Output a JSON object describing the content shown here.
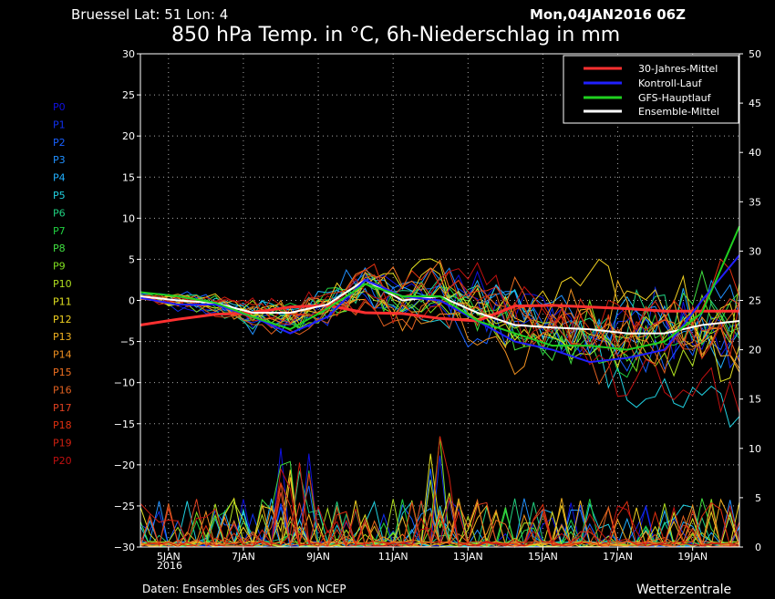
{
  "header": {
    "location": "Bruessel   Lat: 51 Lon: 4",
    "run": "Mon,04JAN2016 06Z",
    "title": "850 hPa Temp. in °C, 6h-Niederschlag in mm"
  },
  "footer": {
    "source": "Daten: Ensembles des GFS von NCEP",
    "brand": "Wetterzentrale"
  },
  "legend": [
    {
      "label": "30-Jahres-Mittel",
      "color": "#ff3030"
    },
    {
      "label": "Kontroll-Lauf",
      "color": "#2020ff"
    },
    {
      "label": "GFS-Hauptlauf",
      "color": "#20d020"
    },
    {
      "label": "Ensemble-Mittel",
      "color": "#ffffff"
    }
  ],
  "members": [
    {
      "label": "P0",
      "color": "#1010e0"
    },
    {
      "label": "P1",
      "color": "#1030f0"
    },
    {
      "label": "P2",
      "color": "#1860ff"
    },
    {
      "label": "P3",
      "color": "#2090ff"
    },
    {
      "label": "P4",
      "color": "#20b0ff"
    },
    {
      "label": "P5",
      "color": "#20d0e0"
    },
    {
      "label": "P6",
      "color": "#20d080"
    },
    {
      "label": "P7",
      "color": "#20d040"
    },
    {
      "label": "P8",
      "color": "#40e040"
    },
    {
      "label": "P9",
      "color": "#80e020"
    },
    {
      "label": "P10",
      "color": "#b0e020"
    },
    {
      "label": "P11",
      "color": "#e0e020"
    },
    {
      "label": "P12",
      "color": "#f0d020"
    },
    {
      "label": "P13",
      "color": "#f0b020"
    },
    {
      "label": "P14",
      "color": "#f09020"
    },
    {
      "label": "P15",
      "color": "#f07020"
    },
    {
      "label": "P16",
      "color": "#e06020"
    },
    {
      "label": "P17",
      "color": "#e04020"
    },
    {
      "label": "P18",
      "color": "#e03010"
    },
    {
      "label": "P19",
      "color": "#d02010"
    },
    {
      "label": "P20",
      "color": "#c01010"
    }
  ],
  "chart_data": {
    "type": "line",
    "title": "850 hPa Temp. in °C, 6h-Niederschlag in mm",
    "x_tick_labels": [
      "5JAN",
      "7JAN",
      "9JAN",
      "11JAN",
      "13JAN",
      "15JAN",
      "17JAN",
      "19JAN"
    ],
    "x_year_label": "2016",
    "x_range_days": [
      0,
      16
    ],
    "x_tick_days": [
      0.75,
      2.75,
      4.75,
      6.75,
      8.75,
      10.75,
      12.75,
      14.75
    ],
    "y_left": {
      "min": -30,
      "max": 30,
      "ticks": [
        -30,
        -25,
        -20,
        -15,
        -10,
        -5,
        0,
        5,
        10,
        15,
        20,
        25,
        30
      ]
    },
    "y_right": {
      "min": 0,
      "max": 50,
      "ticks": [
        0,
        5,
        10,
        15,
        20,
        25,
        30,
        35,
        40,
        45,
        50
      ]
    },
    "grid": true,
    "legend_position": "top-right",
    "series": [
      {
        "name": "30-Jahres-Mittel",
        "axis": "left",
        "color": "#ff3030",
        "x": [
          0,
          1,
          2,
          3,
          4,
          5,
          6,
          7,
          8,
          9,
          10,
          11,
          12,
          13,
          14,
          15,
          16
        ],
        "y": [
          -3.0,
          -2.3,
          -1.7,
          -1.5,
          -0.8,
          -0.6,
          -1.5,
          -1.6,
          -2.2,
          -2.5,
          -0.7,
          -0.6,
          -0.8,
          -1.0,
          -1.3,
          -1.3,
          -1.3
        ]
      },
      {
        "name": "Ensemble-Mittel",
        "axis": "left",
        "color": "#ffffff",
        "x": [
          0,
          1,
          2,
          3,
          4,
          5,
          6,
          7,
          8,
          9,
          10,
          11,
          12,
          13,
          14,
          15,
          16
        ],
        "y": [
          0.5,
          0.0,
          -0.3,
          -1.5,
          -1.5,
          -0.5,
          2.5,
          0.0,
          0.5,
          -1.5,
          -3.0,
          -3.3,
          -3.5,
          -4.0,
          -4.0,
          -3.0,
          -2.5
        ]
      },
      {
        "name": "Kontroll-Lauf",
        "axis": "left",
        "color": "#2020ff",
        "x": [
          0,
          1,
          2,
          3,
          4,
          5,
          6,
          7,
          8,
          9,
          10,
          11,
          12,
          13,
          14,
          15,
          16
        ],
        "y": [
          0.3,
          -0.5,
          -0.5,
          -2.0,
          -4.0,
          -2.0,
          2.5,
          0.5,
          0.0,
          -2.5,
          -5.0,
          -6.0,
          -7.5,
          -7.0,
          -6.0,
          0.0,
          5.5
        ]
      },
      {
        "name": "GFS-Hauptlauf",
        "axis": "left",
        "color": "#20d020",
        "x": [
          0,
          1,
          2,
          3,
          4,
          5,
          6,
          7,
          8,
          9,
          10,
          11,
          12,
          13,
          14,
          15,
          16
        ],
        "y": [
          1.0,
          0.5,
          -0.3,
          -2.0,
          -3.5,
          -1.0,
          2.0,
          0.5,
          0.5,
          -2.5,
          -4.0,
          -5.5,
          -5.5,
          -6.0,
          -5.0,
          -1.5,
          9.0
        ]
      }
    ]
  }
}
